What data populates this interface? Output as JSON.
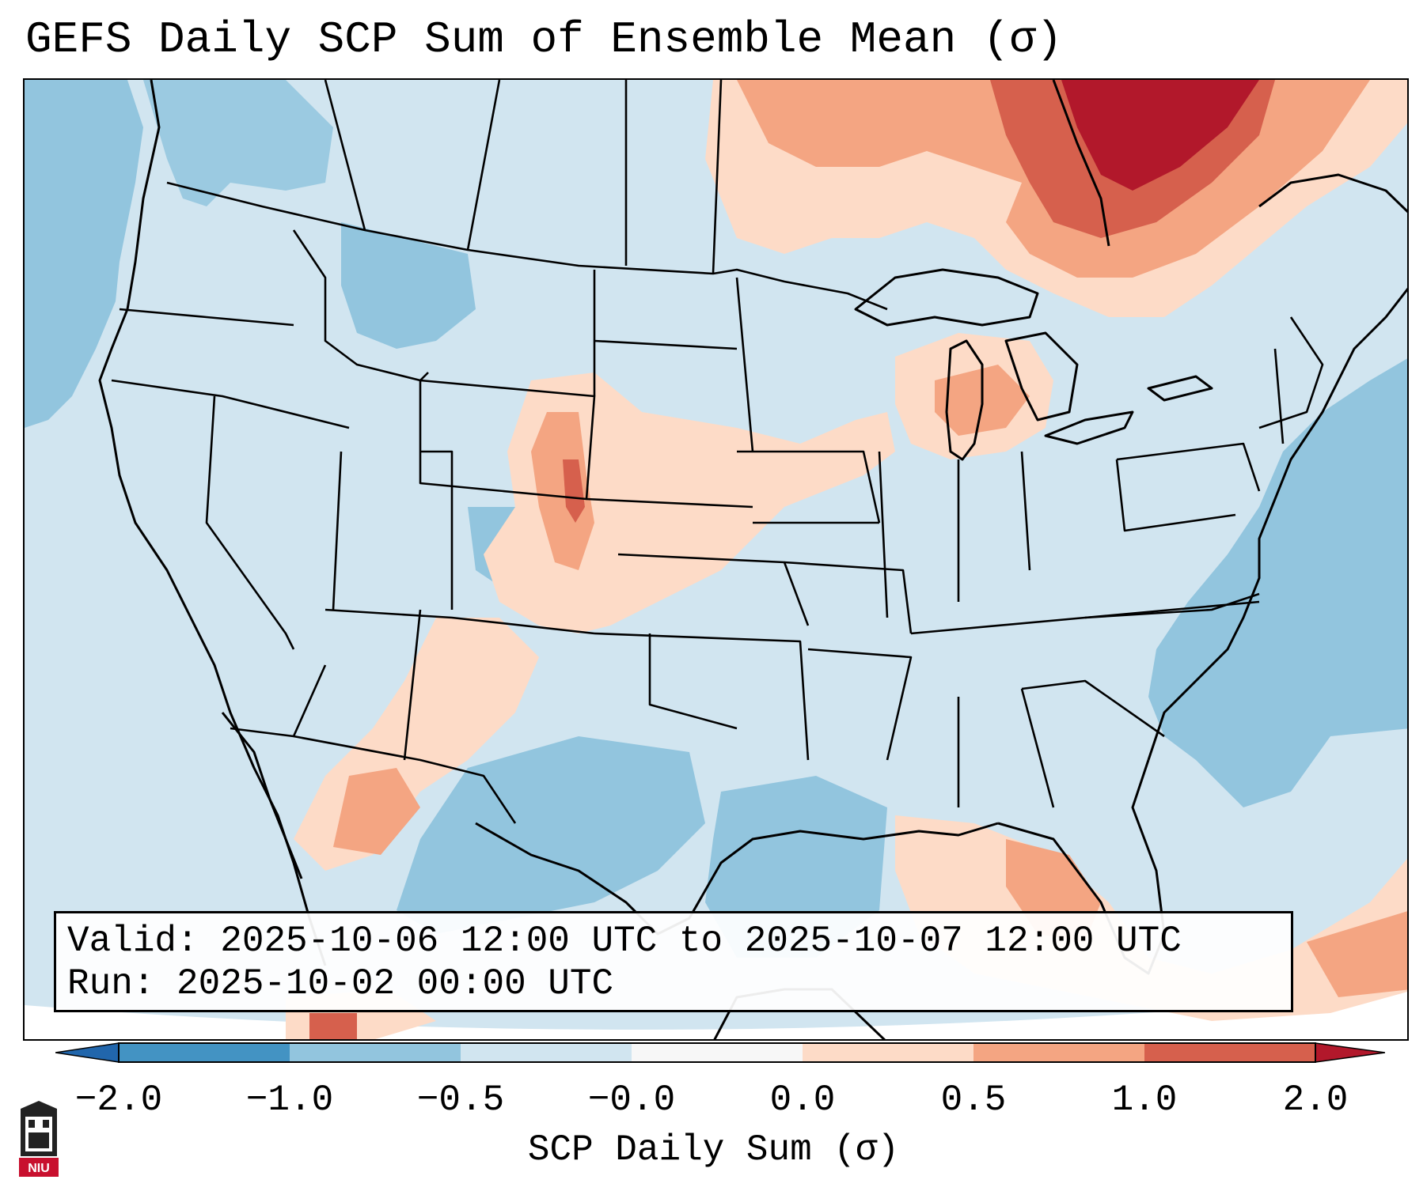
{
  "title": "GEFS Daily SCP Sum of Ensemble Mean (σ)",
  "info": {
    "valid": "Valid: 2025-10-06 12:00 UTC to 2025-10-07 12:00 UTC",
    "run": "Run:   2025-10-02 00:00 UTC"
  },
  "colorbar": {
    "label": "SCP Daily Sum (σ)",
    "ticks": [
      "−2.0",
      "−1.0",
      "−0.5",
      "−0.0",
      "0.0",
      "0.5",
      "1.0",
      "2.0"
    ],
    "bins": [
      "#4393c3",
      "#92c5de",
      "#d1e5f0",
      "#f7f7f7",
      "#fddbc7",
      "#f4a582",
      "#d6604d",
      "#b2182b"
    ],
    "extend_low_color": "#2166ac",
    "extend_high_color": "#67001f"
  },
  "logo": {
    "text": "NIU"
  },
  "map": {
    "ocean_color": "#92c5de",
    "land_color": "#d1e5f0",
    "outline_color": "#000000"
  }
}
